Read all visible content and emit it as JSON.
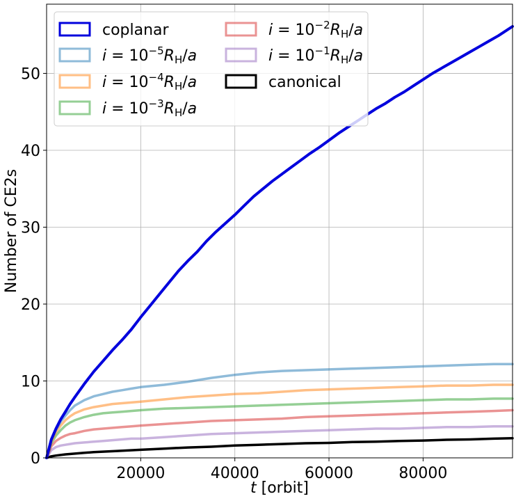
{
  "chart_data": {
    "type": "line",
    "title": "",
    "xlabel_var": "t",
    "xlabel_unit": " [orbit]",
    "ylabel": "Number of CE2s",
    "xlim": [
      0,
      99000
    ],
    "ylim": [
      0,
      59
    ],
    "xticks": [
      20000,
      40000,
      60000,
      80000
    ],
    "yticks": [
      0,
      10,
      20,
      30,
      40,
      50
    ],
    "grid": true,
    "legend_placement": "top-left",
    "legend_columns": 2,
    "series": [
      {
        "name": "coplanar",
        "legend_label": {
          "main": "coplanar"
        },
        "color": "#0000dd",
        "opacity": 1.0,
        "x": [
          0,
          1000,
          2000,
          3000,
          4000,
          5000,
          6000,
          8000,
          10000,
          12000,
          14000,
          16000,
          18000,
          20000,
          22000,
          24000,
          26000,
          28000,
          30000,
          32000,
          34000,
          36000,
          38000,
          40000,
          42000,
          44000,
          46000,
          48000,
          50000,
          52000,
          54000,
          56000,
          58000,
          60000,
          62000,
          64000,
          66000,
          68000,
          70000,
          72000,
          74000,
          76000,
          78000,
          80000,
          82000,
          84000,
          86000,
          88000,
          90000,
          92000,
          94000,
          96000,
          99000
        ],
        "y": [
          0,
          2.4,
          3.8,
          5.0,
          6.0,
          7.0,
          7.9,
          9.6,
          11.2,
          12.6,
          14.0,
          15.3,
          16.7,
          18.3,
          19.8,
          21.3,
          22.8,
          24.3,
          25.6,
          26.8,
          28.2,
          29.4,
          30.5,
          31.6,
          32.8,
          34.0,
          35.0,
          36.0,
          36.9,
          37.8,
          38.7,
          39.6,
          40.4,
          41.3,
          42.2,
          43.0,
          43.8,
          44.6,
          45.4,
          46.1,
          46.9,
          47.6,
          48.4,
          49.2,
          50.0,
          50.7,
          51.4,
          52.1,
          52.8,
          53.5,
          54.2,
          54.9,
          56.1
        ]
      },
      {
        "name": "i=1e-5",
        "legend_label": {
          "base": "10",
          "exp": "−5"
        },
        "color": "#1f77b4",
        "opacity": 0.5,
        "x": [
          0,
          1000,
          2000,
          3000,
          4000,
          5000,
          6000,
          8000,
          10000,
          12000,
          14000,
          16000,
          18000,
          20000,
          25000,
          30000,
          35000,
          40000,
          45000,
          50000,
          55000,
          60000,
          65000,
          70000,
          75000,
          80000,
          85000,
          90000,
          95000,
          99000
        ],
        "y": [
          0,
          2.3,
          3.6,
          4.7,
          5.5,
          6.2,
          6.8,
          7.5,
          8.0,
          8.3,
          8.6,
          8.8,
          9.0,
          9.2,
          9.5,
          9.9,
          10.4,
          10.8,
          11.1,
          11.3,
          11.4,
          11.5,
          11.6,
          11.7,
          11.8,
          11.9,
          12.0,
          12.1,
          12.2,
          12.2
        ]
      },
      {
        "name": "i=1e-4",
        "legend_label": {
          "base": "10",
          "exp": "−4"
        },
        "color": "#ff7f0e",
        "opacity": 0.5,
        "x": [
          0,
          1000,
          2000,
          3000,
          4000,
          5000,
          6000,
          8000,
          10000,
          12000,
          14000,
          16000,
          18000,
          20000,
          25000,
          30000,
          35000,
          40000,
          45000,
          50000,
          55000,
          60000,
          65000,
          70000,
          75000,
          80000,
          85000,
          90000,
          95000,
          99000
        ],
        "y": [
          0,
          2.1,
          3.3,
          4.2,
          4.9,
          5.4,
          5.8,
          6.3,
          6.6,
          6.8,
          7.0,
          7.1,
          7.2,
          7.3,
          7.6,
          7.9,
          8.1,
          8.3,
          8.4,
          8.6,
          8.8,
          8.9,
          9.0,
          9.1,
          9.2,
          9.3,
          9.4,
          9.4,
          9.5,
          9.5
        ]
      },
      {
        "name": "i=1e-3",
        "legend_label": {
          "base": "10",
          "exp": "−3"
        },
        "color": "#2ca02c",
        "opacity": 0.5,
        "x": [
          0,
          1000,
          2000,
          3000,
          4000,
          5000,
          6000,
          8000,
          10000,
          12000,
          14000,
          16000,
          18000,
          20000,
          25000,
          30000,
          35000,
          40000,
          45000,
          50000,
          55000,
          60000,
          65000,
          70000,
          75000,
          80000,
          85000,
          90000,
          95000,
          99000
        ],
        "y": [
          0,
          1.9,
          2.9,
          3.6,
          4.2,
          4.6,
          4.9,
          5.3,
          5.6,
          5.8,
          5.9,
          6.0,
          6.1,
          6.2,
          6.4,
          6.5,
          6.6,
          6.7,
          6.8,
          6.9,
          7.0,
          7.1,
          7.2,
          7.3,
          7.4,
          7.5,
          7.6,
          7.6,
          7.7,
          7.7
        ]
      },
      {
        "name": "i=1e-2",
        "legend_label": {
          "base": "10",
          "exp": "−2"
        },
        "color": "#d62728",
        "opacity": 0.5,
        "x": [
          0,
          1000,
          2000,
          3000,
          4000,
          5000,
          6000,
          8000,
          10000,
          12000,
          14000,
          16000,
          18000,
          20000,
          25000,
          30000,
          35000,
          40000,
          45000,
          50000,
          55000,
          60000,
          65000,
          70000,
          75000,
          80000,
          85000,
          90000,
          95000,
          99000
        ],
        "y": [
          0,
          1.5,
          2.2,
          2.6,
          2.9,
          3.1,
          3.2,
          3.5,
          3.7,
          3.8,
          3.9,
          4.0,
          4.1,
          4.2,
          4.4,
          4.6,
          4.8,
          4.9,
          5.0,
          5.1,
          5.3,
          5.4,
          5.5,
          5.6,
          5.7,
          5.8,
          5.9,
          6.0,
          6.1,
          6.2
        ]
      },
      {
        "name": "i=1e-1",
        "legend_label": {
          "base": "10",
          "exp": "−1"
        },
        "color": "#9467bd",
        "opacity": 0.5,
        "x": [
          0,
          1000,
          2000,
          3000,
          4000,
          5000,
          6000,
          8000,
          10000,
          12000,
          14000,
          16000,
          18000,
          20000,
          25000,
          30000,
          35000,
          40000,
          45000,
          50000,
          55000,
          60000,
          65000,
          70000,
          75000,
          80000,
          85000,
          90000,
          95000,
          99000
        ],
        "y": [
          0,
          1.0,
          1.4,
          1.6,
          1.7,
          1.8,
          1.9,
          2.0,
          2.1,
          2.2,
          2.3,
          2.4,
          2.5,
          2.5,
          2.7,
          2.9,
          3.1,
          3.2,
          3.3,
          3.4,
          3.5,
          3.6,
          3.7,
          3.8,
          3.8,
          3.9,
          4.0,
          4.0,
          4.1,
          4.1
        ]
      },
      {
        "name": "canonical",
        "legend_label": {
          "main": "canonical"
        },
        "color": "#000000",
        "opacity": 1.0,
        "x": [
          0,
          1000,
          2000,
          4000,
          6000,
          8000,
          10000,
          15000,
          20000,
          25000,
          30000,
          35000,
          40000,
          45000,
          50000,
          55000,
          60000,
          65000,
          70000,
          75000,
          80000,
          85000,
          90000,
          95000,
          99000
        ],
        "y": [
          0,
          0.2,
          0.3,
          0.45,
          0.55,
          0.65,
          0.75,
          0.9,
          1.05,
          1.2,
          1.35,
          1.45,
          1.6,
          1.7,
          1.8,
          1.9,
          1.95,
          2.05,
          2.1,
          2.2,
          2.25,
          2.35,
          2.4,
          2.5,
          2.55
        ]
      }
    ]
  }
}
